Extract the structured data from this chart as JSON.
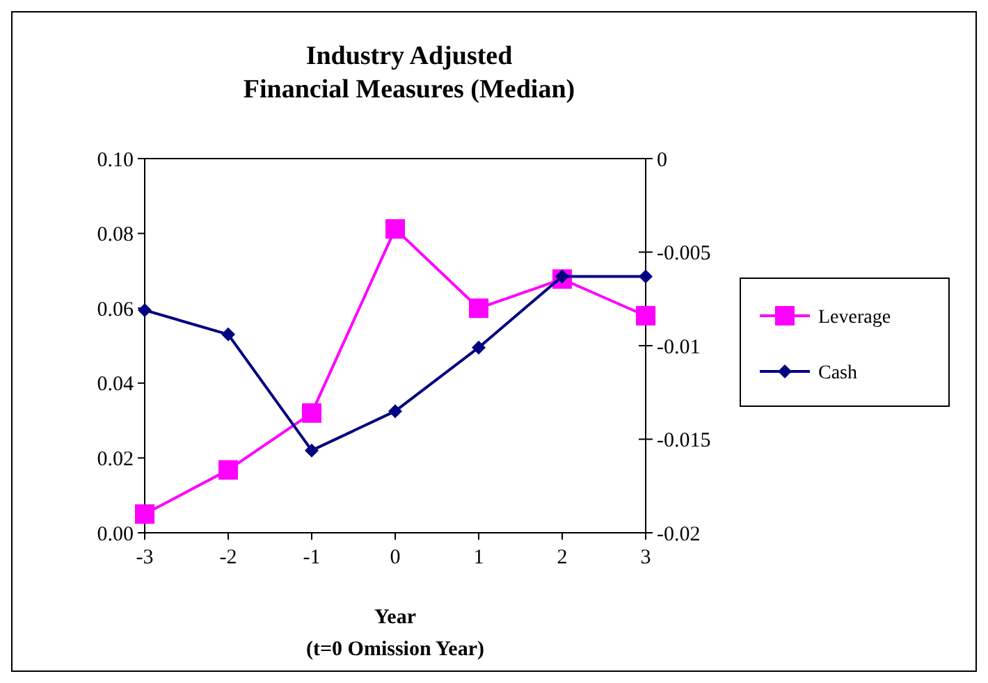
{
  "chart_data": {
    "type": "line",
    "title": "Industry Adjusted\nFinancial Measures (Median)",
    "xlabel": "Year",
    "subtitle": "(t=0 Omission Year)",
    "x": [
      -3,
      -2,
      -1,
      0,
      1,
      2,
      3
    ],
    "xlim": [
      -3,
      3
    ],
    "xticks": [
      -3,
      -2,
      -1,
      0,
      1,
      2,
      3
    ],
    "ylim": [
      0,
      0.1
    ],
    "yticks": [
      {
        "value": 0,
        "label": "0.00"
      },
      {
        "value": 0.02,
        "label": "0.02"
      },
      {
        "value": 0.04,
        "label": "0.04"
      },
      {
        "value": 0.06,
        "label": "0.06"
      },
      {
        "value": 0.08,
        "label": "0.08"
      },
      {
        "value": 0.1,
        "label": "0.10"
      }
    ],
    "y2lim": [
      -0.02,
      0
    ],
    "y2ticks": [
      -0.02,
      -0.015,
      -0.01,
      -0.005,
      0
    ],
    "grid": false,
    "legend": "right",
    "series": [
      {
        "name": "Leverage",
        "color": "#ff00ff",
        "marker": "square",
        "values": [
          0.005,
          0.0168,
          0.032,
          0.0812,
          0.06,
          0.0678,
          0.058
        ]
      },
      {
        "name": "Cash",
        "color": "#000080",
        "marker": "diamond",
        "axis": "y2",
        "values": [
          -0.0081,
          -0.0094,
          -0.0156,
          -0.0135,
          -0.0101,
          -0.0063,
          -0.0063
        ]
      }
    ]
  }
}
